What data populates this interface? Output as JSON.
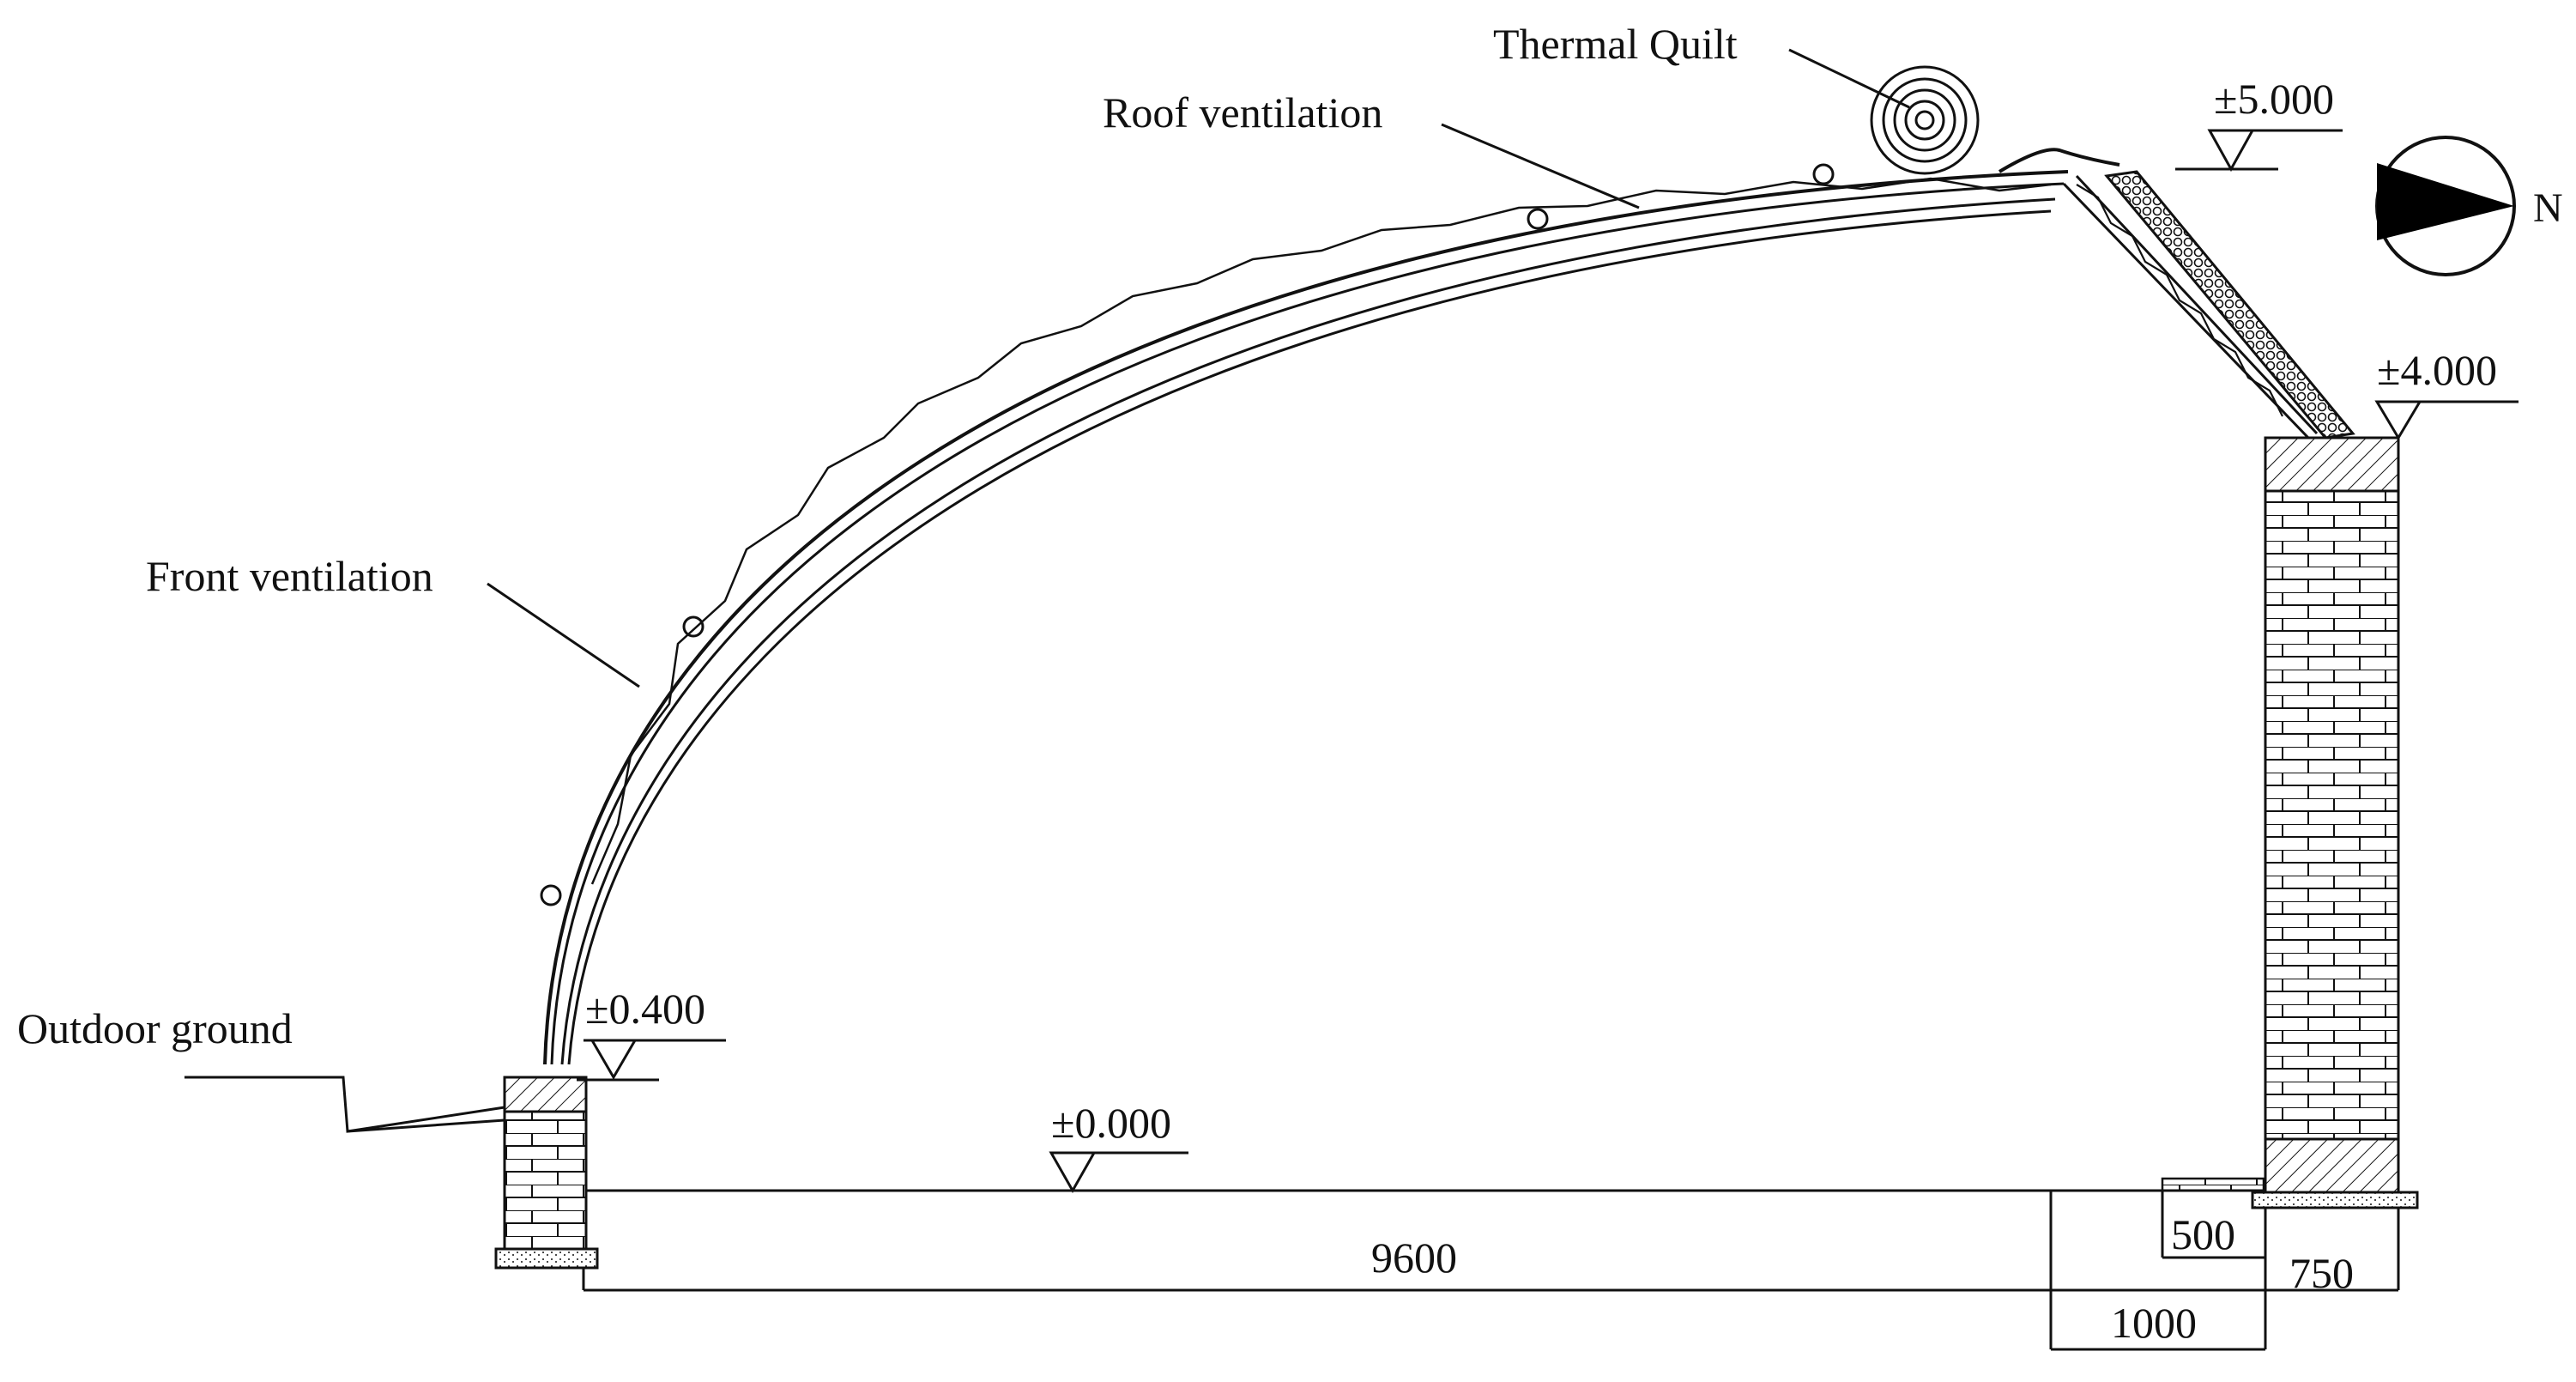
{
  "labels": {
    "thermal_quilt": "Thermal Quilt",
    "roof_ventilation": "Roof ventilation",
    "front_ventilation": "Front ventilation",
    "outdoor_ground": "Outdoor ground",
    "north": "N"
  },
  "elevations": {
    "top": "±5.000",
    "wall_top": "±4.000",
    "front_wall": "±0.400",
    "floor": "±0.000"
  },
  "dimensions": {
    "span": "9600",
    "offset": "1000",
    "wall_base": "500",
    "wall_width": "750"
  },
  "colors": {
    "line": "#111111",
    "compass_fill": "#000000"
  }
}
